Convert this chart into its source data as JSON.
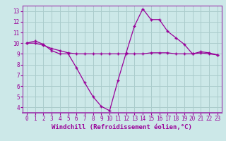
{
  "xlabel": "Windchill (Refroidissement éolien,°C)",
  "background_color": "#cce8e8",
  "grid_color": "#aacccc",
  "line1_x": [
    0,
    1,
    2,
    3,
    4,
    5,
    6,
    7,
    8,
    9,
    10,
    11,
    12,
    13,
    14,
    15,
    16,
    17,
    18,
    19,
    20,
    21,
    22,
    23
  ],
  "line1_y": [
    10.0,
    10.2,
    9.9,
    9.3,
    9.0,
    9.0,
    7.7,
    6.3,
    5.0,
    4.1,
    3.7,
    6.5,
    9.1,
    11.6,
    13.2,
    12.2,
    12.2,
    11.1,
    10.5,
    9.9,
    9.0,
    9.2,
    9.1,
    8.9
  ],
  "line2_x": [
    0,
    1,
    2,
    3,
    4,
    5,
    6,
    7,
    8,
    9,
    10,
    11,
    12,
    13,
    14,
    15,
    16,
    17,
    18,
    19,
    20,
    21,
    22,
    23
  ],
  "line2_y": [
    10.0,
    10.0,
    9.8,
    9.5,
    9.3,
    9.1,
    9.0,
    9.0,
    9.0,
    9.0,
    9.0,
    9.0,
    9.0,
    9.0,
    9.0,
    9.1,
    9.1,
    9.1,
    9.0,
    9.0,
    9.0,
    9.1,
    9.0,
    8.9
  ],
  "line_color": "#990099",
  "marker": "+",
  "xlim": [
    -0.5,
    23.5
  ],
  "ylim": [
    3.5,
    13.5
  ],
  "yticks": [
    4,
    5,
    6,
    7,
    8,
    9,
    10,
    11,
    12,
    13
  ],
  "xticks": [
    0,
    1,
    2,
    3,
    4,
    5,
    6,
    7,
    8,
    9,
    10,
    11,
    12,
    13,
    14,
    15,
    16,
    17,
    18,
    19,
    20,
    21,
    22,
    23
  ],
  "tick_fontsize": 5.5,
  "label_fontsize": 6.5,
  "spine_color": "#9933aa"
}
